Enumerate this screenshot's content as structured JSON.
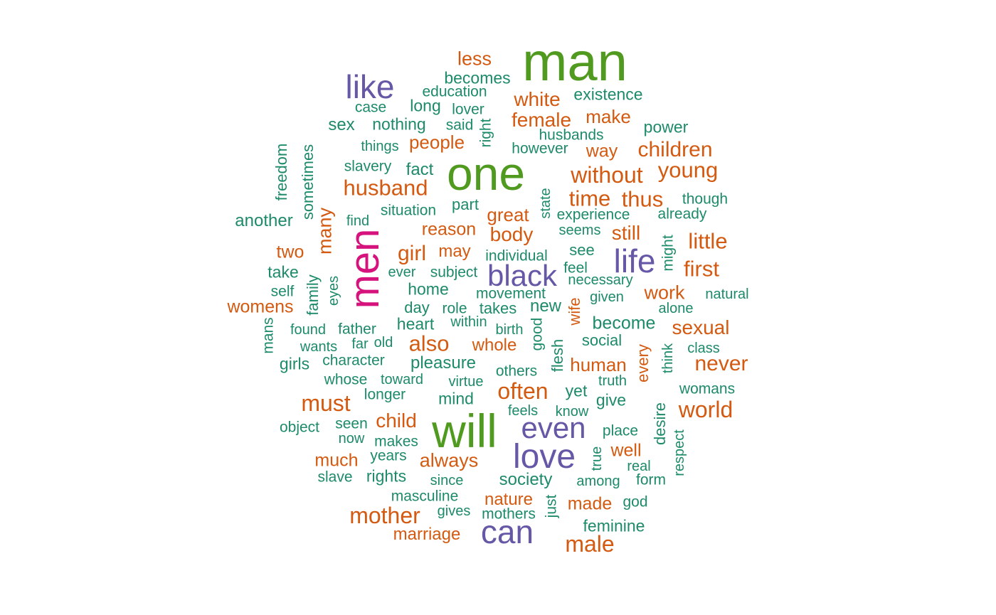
{
  "colors": {
    "green": "#4f9a1f",
    "purple": "#6658a6",
    "magenta": "#d6137d",
    "orange": "#d35a10",
    "teal": "#1d8a6a"
  },
  "words": [
    {
      "text": "man",
      "color": "green"
    },
    {
      "text": "one",
      "color": "green"
    },
    {
      "text": "will",
      "color": "green"
    },
    {
      "text": "men",
      "color": "magenta"
    },
    {
      "text": "like",
      "color": "purple"
    },
    {
      "text": "life",
      "color": "purple"
    },
    {
      "text": "black",
      "color": "purple"
    },
    {
      "text": "even",
      "color": "purple"
    },
    {
      "text": "love",
      "color": "purple"
    },
    {
      "text": "can",
      "color": "purple"
    },
    {
      "text": "less",
      "color": "orange"
    },
    {
      "text": "becomes",
      "color": "teal"
    },
    {
      "text": "education",
      "color": "teal"
    },
    {
      "text": "existence",
      "color": "teal"
    },
    {
      "text": "white",
      "color": "orange"
    },
    {
      "text": "case",
      "color": "teal"
    },
    {
      "text": "long",
      "color": "teal"
    },
    {
      "text": "lover",
      "color": "teal"
    },
    {
      "text": "female",
      "color": "orange"
    },
    {
      "text": "make",
      "color": "orange"
    },
    {
      "text": "sex",
      "color": "teal"
    },
    {
      "text": "nothing",
      "color": "teal"
    },
    {
      "text": "said",
      "color": "teal"
    },
    {
      "text": "right",
      "color": "teal"
    },
    {
      "text": "husbands",
      "color": "teal"
    },
    {
      "text": "power",
      "color": "teal"
    },
    {
      "text": "things",
      "color": "teal"
    },
    {
      "text": "people",
      "color": "orange"
    },
    {
      "text": "however",
      "color": "teal"
    },
    {
      "text": "way",
      "color": "orange"
    },
    {
      "text": "children",
      "color": "orange"
    },
    {
      "text": "freedom",
      "color": "teal"
    },
    {
      "text": "sometimes",
      "color": "teal"
    },
    {
      "text": "slavery",
      "color": "teal"
    },
    {
      "text": "fact",
      "color": "teal"
    },
    {
      "text": "without",
      "color": "orange"
    },
    {
      "text": "young",
      "color": "orange"
    },
    {
      "text": "husband",
      "color": "orange"
    },
    {
      "text": "state",
      "color": "teal"
    },
    {
      "text": "time",
      "color": "orange"
    },
    {
      "text": "thus",
      "color": "orange"
    },
    {
      "text": "though",
      "color": "teal"
    },
    {
      "text": "many",
      "color": "orange"
    },
    {
      "text": "situation",
      "color": "teal"
    },
    {
      "text": "part",
      "color": "teal"
    },
    {
      "text": "great",
      "color": "orange"
    },
    {
      "text": "experience",
      "color": "teal"
    },
    {
      "text": "already",
      "color": "teal"
    },
    {
      "text": "another",
      "color": "teal"
    },
    {
      "text": "find",
      "color": "teal"
    },
    {
      "text": "reason",
      "color": "orange"
    },
    {
      "text": "body",
      "color": "orange"
    },
    {
      "text": "seems",
      "color": "teal"
    },
    {
      "text": "still",
      "color": "orange"
    },
    {
      "text": "little",
      "color": "orange"
    },
    {
      "text": "two",
      "color": "orange"
    },
    {
      "text": "girl",
      "color": "orange"
    },
    {
      "text": "may",
      "color": "orange"
    },
    {
      "text": "individual",
      "color": "teal"
    },
    {
      "text": "see",
      "color": "teal"
    },
    {
      "text": "might",
      "color": "teal"
    },
    {
      "text": "take",
      "color": "teal"
    },
    {
      "text": "ever",
      "color": "teal"
    },
    {
      "text": "subject",
      "color": "teal"
    },
    {
      "text": "feel",
      "color": "teal"
    },
    {
      "text": "first",
      "color": "orange"
    },
    {
      "text": "self",
      "color": "teal"
    },
    {
      "text": "family",
      "color": "teal"
    },
    {
      "text": "eyes",
      "color": "teal"
    },
    {
      "text": "home",
      "color": "teal"
    },
    {
      "text": "movement",
      "color": "teal"
    },
    {
      "text": "necessary",
      "color": "teal"
    },
    {
      "text": "given",
      "color": "teal"
    },
    {
      "text": "work",
      "color": "orange"
    },
    {
      "text": "natural",
      "color": "teal"
    },
    {
      "text": "womens",
      "color": "orange"
    },
    {
      "text": "day",
      "color": "teal"
    },
    {
      "text": "role",
      "color": "teal"
    },
    {
      "text": "takes",
      "color": "teal"
    },
    {
      "text": "new",
      "color": "teal"
    },
    {
      "text": "wife",
      "color": "orange"
    },
    {
      "text": "alone",
      "color": "teal"
    },
    {
      "text": "heart",
      "color": "teal"
    },
    {
      "text": "within",
      "color": "teal"
    },
    {
      "text": "become",
      "color": "teal"
    },
    {
      "text": "sexual",
      "color": "orange"
    },
    {
      "text": "mans",
      "color": "teal"
    },
    {
      "text": "found",
      "color": "teal"
    },
    {
      "text": "father",
      "color": "teal"
    },
    {
      "text": "birth",
      "color": "teal"
    },
    {
      "text": "good",
      "color": "teal"
    },
    {
      "text": "social",
      "color": "teal"
    },
    {
      "text": "wants",
      "color": "teal"
    },
    {
      "text": "far",
      "color": "teal"
    },
    {
      "text": "old",
      "color": "teal"
    },
    {
      "text": "also",
      "color": "orange"
    },
    {
      "text": "whole",
      "color": "orange"
    },
    {
      "text": "class",
      "color": "teal"
    },
    {
      "text": "character",
      "color": "teal"
    },
    {
      "text": "flesh",
      "color": "teal"
    },
    {
      "text": "every",
      "color": "orange"
    },
    {
      "text": "think",
      "color": "teal"
    },
    {
      "text": "girls",
      "color": "teal"
    },
    {
      "text": "pleasure",
      "color": "teal"
    },
    {
      "text": "others",
      "color": "teal"
    },
    {
      "text": "human",
      "color": "orange"
    },
    {
      "text": "never",
      "color": "orange"
    },
    {
      "text": "whose",
      "color": "teal"
    },
    {
      "text": "toward",
      "color": "teal"
    },
    {
      "text": "virtue",
      "color": "teal"
    },
    {
      "text": "truth",
      "color": "teal"
    },
    {
      "text": "longer",
      "color": "teal"
    },
    {
      "text": "often",
      "color": "orange"
    },
    {
      "text": "yet",
      "color": "teal"
    },
    {
      "text": "womans",
      "color": "teal"
    },
    {
      "text": "must",
      "color": "orange"
    },
    {
      "text": "mind",
      "color": "teal"
    },
    {
      "text": "give",
      "color": "teal"
    },
    {
      "text": "feels",
      "color": "teal"
    },
    {
      "text": "know",
      "color": "teal"
    },
    {
      "text": "world",
      "color": "orange"
    },
    {
      "text": "seen",
      "color": "teal"
    },
    {
      "text": "child",
      "color": "orange"
    },
    {
      "text": "desire",
      "color": "teal"
    },
    {
      "text": "object",
      "color": "teal"
    },
    {
      "text": "place",
      "color": "teal"
    },
    {
      "text": "now",
      "color": "teal"
    },
    {
      "text": "makes",
      "color": "teal"
    },
    {
      "text": "respect",
      "color": "teal"
    },
    {
      "text": "years",
      "color": "teal"
    },
    {
      "text": "true",
      "color": "teal"
    },
    {
      "text": "well",
      "color": "orange"
    },
    {
      "text": "much",
      "color": "orange"
    },
    {
      "text": "always",
      "color": "orange"
    },
    {
      "text": "real",
      "color": "teal"
    },
    {
      "text": "slave",
      "color": "teal"
    },
    {
      "text": "rights",
      "color": "teal"
    },
    {
      "text": "since",
      "color": "teal"
    },
    {
      "text": "society",
      "color": "teal"
    },
    {
      "text": "among",
      "color": "teal"
    },
    {
      "text": "form",
      "color": "teal"
    },
    {
      "text": "masculine",
      "color": "teal"
    },
    {
      "text": "nature",
      "color": "orange"
    },
    {
      "text": "just",
      "color": "teal"
    },
    {
      "text": "god",
      "color": "teal"
    },
    {
      "text": "gives",
      "color": "teal"
    },
    {
      "text": "mothers",
      "color": "teal"
    },
    {
      "text": "made",
      "color": "orange"
    },
    {
      "text": "mother",
      "color": "orange"
    },
    {
      "text": "feminine",
      "color": "teal"
    },
    {
      "text": "marriage",
      "color": "orange"
    },
    {
      "text": "male",
      "color": "orange"
    }
  ]
}
